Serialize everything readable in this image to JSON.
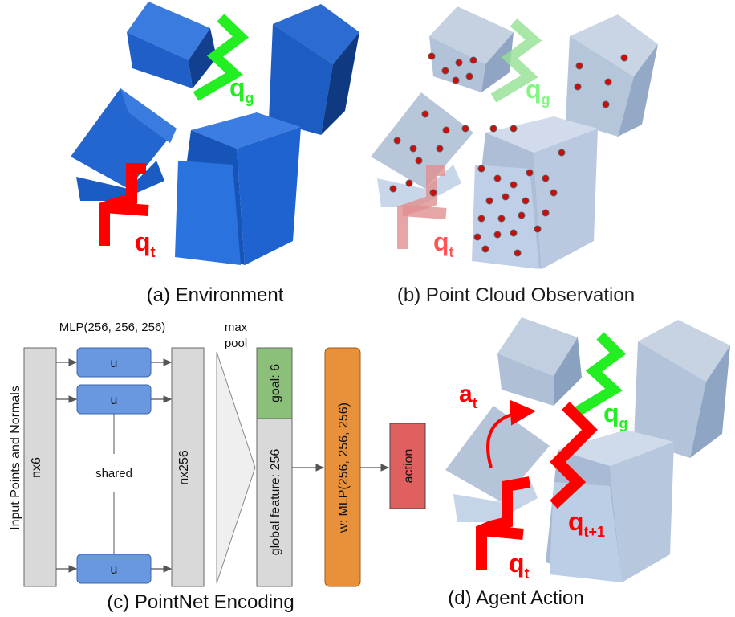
{
  "captions": {
    "a": "(a) Environment",
    "b": "(b) Point Cloud Observation",
    "c": "(c) PointNet Encoding",
    "d": "(d) Agent Action"
  },
  "symbols": {
    "qg_base": "q",
    "qg_sub": "g",
    "qt_base": "q",
    "qt_sub": "t",
    "qt1_sub": "t+1",
    "at_base": "a",
    "at_sub": "t"
  },
  "encoder": {
    "input_label": "Input Points and Normals",
    "input_block": "nx6",
    "mlp_label": "MLP(256, 256, 256)",
    "unit_label": "u",
    "shared_label": "shared",
    "hidden_block": "nx256",
    "pool_line1": "max",
    "pool_line2": "pool",
    "goal_block": "goal: 6",
    "global_block": "global feature: 256",
    "w_block": "w: MLP(256, 256, 256)",
    "action_block": "action"
  },
  "colors": {
    "env_blue": "#1f5fc7",
    "goal_green": "#22ee22",
    "current_red": "#ff0000",
    "unit_blue": "#6a98e0",
    "goal_block": "#8cc07a",
    "w_block": "#e8913a",
    "action_block": "#e06060",
    "grey_block": "#d9d9d9"
  },
  "icons": [
    "arrow-icon",
    "curved-arrow-icon"
  ]
}
